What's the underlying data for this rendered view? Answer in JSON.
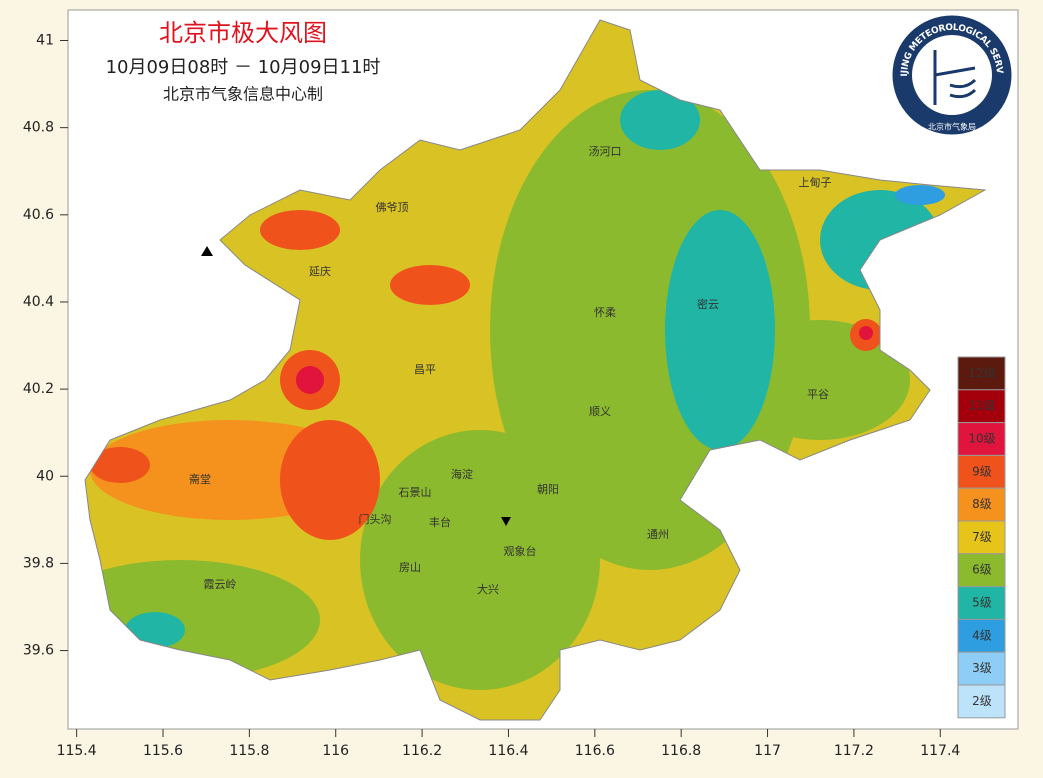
{
  "header": {
    "title": "北京市极大风图",
    "time_range": "10月09日08时 － 10月09日11时",
    "producer": "北京市气象信息中心制"
  },
  "logo": {
    "ring_text": "BEIJING METEOROLOGICAL SERVICE",
    "org": "北京市气象局"
  },
  "map": {
    "xlim": [
      115.38,
      117.58
    ],
    "ylim": [
      39.42,
      41.07
    ],
    "xticks": [
      115.4,
      115.6,
      115.8,
      116,
      116.2,
      116.4,
      116.6,
      116.8,
      117,
      117.2,
      117.4
    ],
    "yticks": [
      39.6,
      39.8,
      40,
      40.2,
      40.4,
      40.6,
      40.8,
      41
    ]
  },
  "legend": {
    "items": [
      {
        "label": "12级",
        "color": "#5c1a0e"
      },
      {
        "label": "11级",
        "color": "#a3000b"
      },
      {
        "label": "10级",
        "color": "#e0143c"
      },
      {
        "label": "9级",
        "color": "#f0521c"
      },
      {
        "label": "8级",
        "color": "#f5921e"
      },
      {
        "label": "7级",
        "color": "#e6c41a"
      },
      {
        "label": "6级",
        "color": "#8cba2e"
      },
      {
        "label": "5级",
        "color": "#21b5a6"
      },
      {
        "label": "4级",
        "color": "#2e9ee0"
      },
      {
        "label": "3级",
        "color": "#8ecdf5"
      },
      {
        "label": "2级",
        "color": "#bde3fa"
      }
    ]
  },
  "places": [
    "汤河口",
    "上甸子",
    "佛爷顶",
    "延庆",
    "密云",
    "怀柔",
    "昌平",
    "平谷",
    "顺义",
    "海淀",
    "朝阳",
    "石景山",
    "门头沟",
    "丰台",
    "观象台",
    "通州",
    "大兴",
    "房山",
    "霞云岭",
    "斋堂"
  ]
}
